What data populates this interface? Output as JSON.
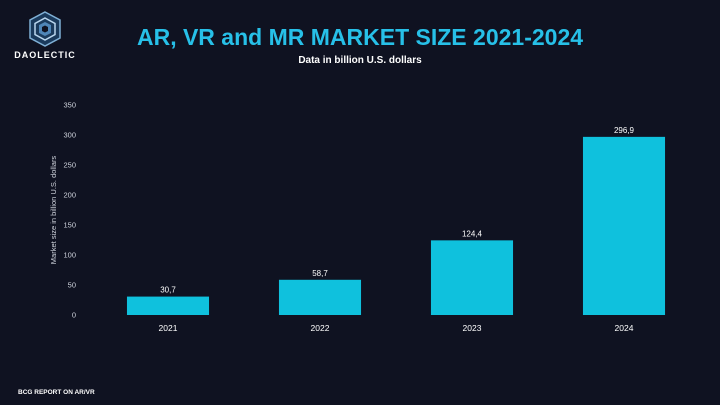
{
  "brand": {
    "logo_text": "DAOLECTIC",
    "accent_color": "#27c0e8",
    "background_color": "#0f1221"
  },
  "footer": {
    "source": "BCG REPORT ON AR/VR"
  },
  "chart_data": {
    "type": "bar",
    "title": "AR, VR and MR MARKET SIZE 2021-2024",
    "subtitle": "Data in billion U.S. dollars",
    "ylabel": "Market size in billion U.S. dollars",
    "xlabel": "",
    "categories": [
      "2021",
      "2022",
      "2023",
      "2024"
    ],
    "values": [
      30.7,
      58.7,
      124.4,
      296.9
    ],
    "value_labels": [
      "30,7",
      "58,7",
      "124,4",
      "296,9"
    ],
    "ylim": [
      0,
      350
    ],
    "yticks": [
      0,
      50,
      100,
      150,
      200,
      250,
      300,
      350
    ],
    "grid": false,
    "legend": "none",
    "bar_color": "#0fc1dd"
  }
}
